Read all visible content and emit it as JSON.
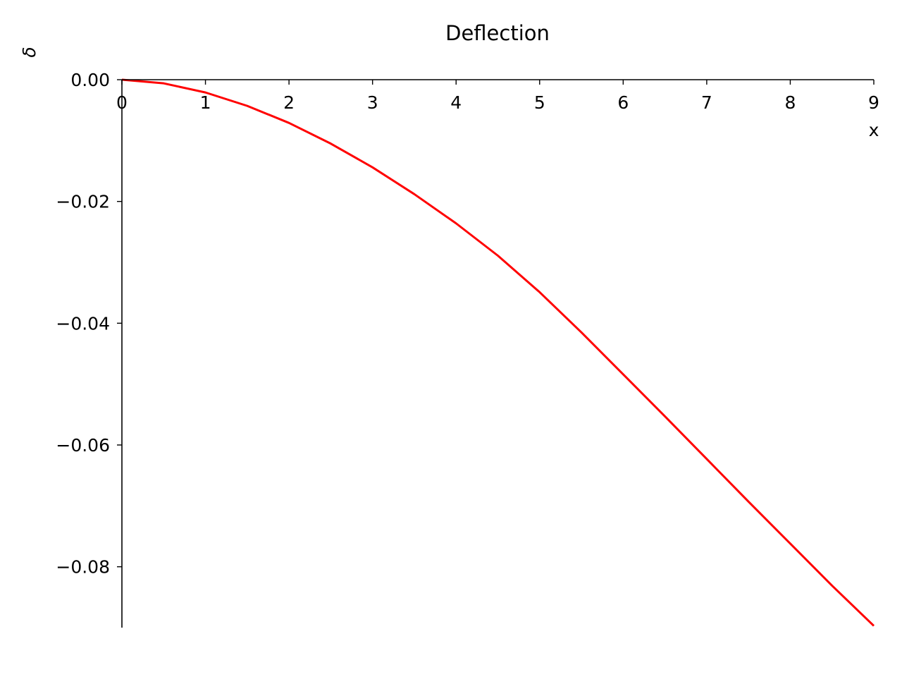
{
  "chart_data": {
    "type": "line",
    "title": "Deflection",
    "xlabel": "x",
    "ylabel": "δ",
    "xlim": [
      0,
      9
    ],
    "ylim": [
      -0.09,
      0.0
    ],
    "xticks": [
      0,
      1,
      2,
      3,
      4,
      5,
      6,
      7,
      8,
      9
    ],
    "xtick_labels": [
      "0",
      "1",
      "2",
      "3",
      "4",
      "5",
      "6",
      "7",
      "8",
      "9"
    ],
    "yticks": [
      0.0,
      -0.02,
      -0.04,
      -0.06,
      -0.08
    ],
    "ytick_labels": [
      "0.00",
      "−0.02",
      "−0.04",
      "−0.06",
      "−0.08"
    ],
    "grid": false,
    "legend": "none",
    "axis_style": "spines at origin (top x-axis, left y-axis)",
    "series": [
      {
        "color": "#ff0000",
        "x": [
          0,
          0.5,
          1,
          1.5,
          2,
          2.5,
          3,
          3.5,
          4,
          4.5,
          5,
          5.5,
          6,
          6.5,
          7,
          7.5,
          8,
          8.5,
          9
        ],
        "y": [
          0.0,
          -0.0006,
          -0.0021,
          -0.0043,
          -0.0071,
          -0.0105,
          -0.0144,
          -0.0188,
          -0.0236,
          -0.0289,
          -0.0349,
          -0.0415,
          -0.0484,
          -0.0553,
          -0.0623,
          -0.0693,
          -0.0762,
          -0.0831,
          -0.0897
        ]
      }
    ]
  }
}
